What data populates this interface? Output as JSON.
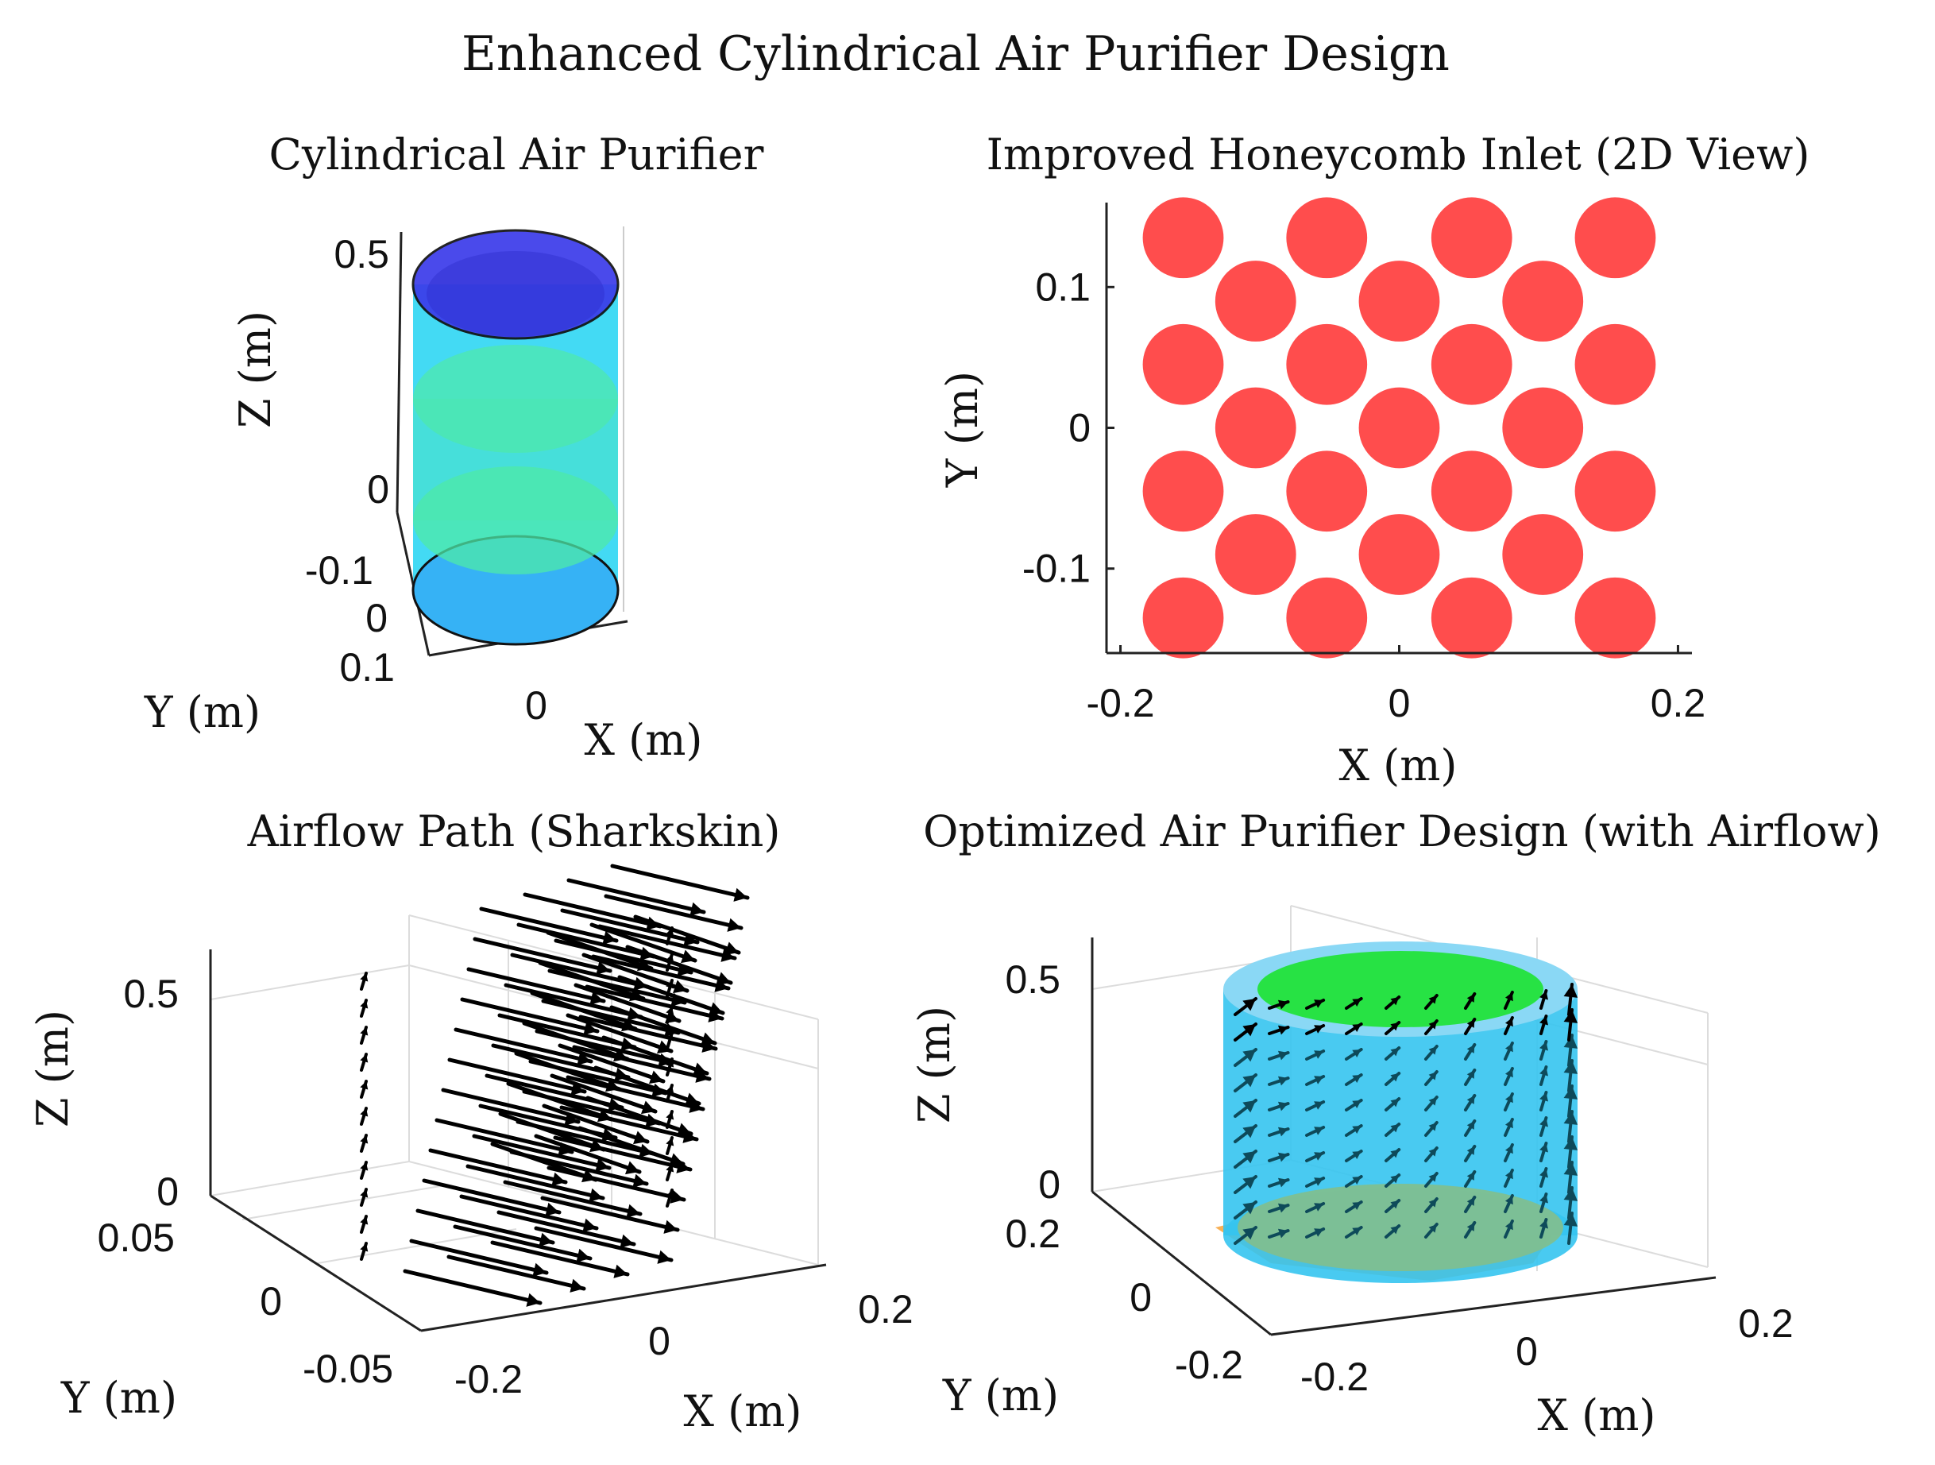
{
  "figure_title": "Enhanced Cylindrical Air Purifier Design",
  "chart_data": [
    {
      "id": "cylinder",
      "type": "3d-surface",
      "title": "Cylindrical Air Purifier",
      "xlabel": "X (m)",
      "ylabel": "Y (m)",
      "zlabel": "Z (m)",
      "x_ticks": [
        "0"
      ],
      "y_ticks": [
        "-0.1",
        "0",
        "0.1"
      ],
      "z_ticks": [
        "0",
        "0.5"
      ],
      "zlim": [
        -0.1,
        0.55
      ],
      "radius": 0.1,
      "height": 0.5,
      "layers": [
        {
          "name": "blue filter layer",
          "color": "#3b3bea"
        },
        {
          "name": "green filter layer",
          "color": "#4ee9a8"
        },
        {
          "name": "cyan shell",
          "color": "#22d4f2"
        },
        {
          "name": "light blue base",
          "color": "#36b2f5"
        }
      ]
    },
    {
      "id": "honeycomb",
      "type": "scatter",
      "title": "Improved Honeycomb Inlet (2D View)",
      "xlabel": "X (m)",
      "ylabel": "Y (m)",
      "x_ticks": [
        "-0.2",
        "0",
        "0.2"
      ],
      "y_ticks": [
        "-0.1",
        "0",
        "0.1"
      ],
      "xlim": [
        -0.21,
        0.21
      ],
      "ylim": [
        -0.16,
        0.16
      ],
      "circle_radius": 0.029,
      "color": "#ff4d4d",
      "rows": [
        {
          "y": 0.135,
          "x": [
            -0.155,
            -0.052,
            0.052,
            0.155
          ]
        },
        {
          "y": 0.09,
          "x": [
            -0.103,
            0.0,
            0.103
          ]
        },
        {
          "y": 0.045,
          "x": [
            -0.155,
            -0.052,
            0.052,
            0.155
          ]
        },
        {
          "y": 0.0,
          "x": [
            -0.103,
            0.0,
            0.103
          ]
        },
        {
          "y": -0.045,
          "x": [
            -0.155,
            -0.052,
            0.052,
            0.155
          ]
        },
        {
          "y": -0.09,
          "x": [
            -0.103,
            0.0,
            0.103
          ]
        },
        {
          "y": -0.135,
          "x": [
            -0.155,
            -0.052,
            0.052,
            0.155
          ]
        }
      ]
    },
    {
      "id": "airflow",
      "type": "quiver3d",
      "title": "Airflow Path (Sharkskin)",
      "xlabel": "X (m)",
      "ylabel": "Y (m)",
      "zlabel": "Z (m)",
      "x_ticks": [
        "-0.2",
        "0",
        "0.2"
      ],
      "y_ticks": [
        "-0.05",
        "0",
        "0.05"
      ],
      "z_ticks": [
        "0",
        "0.5"
      ],
      "color": "#000000"
    },
    {
      "id": "optimized",
      "type": "quiver3d+surface",
      "title": "Optimized Air Purifier Design (with Airflow)",
      "xlabel": "X (m)",
      "ylabel": "Y (m)",
      "zlabel": "Z (m)",
      "x_ticks": [
        "-0.2",
        "0",
        "0.2"
      ],
      "y_ticks": [
        "-0.2",
        "0",
        "0.2"
      ],
      "z_ticks": [
        "0",
        "0.5"
      ],
      "shell_color": "#35c4f0",
      "top_color": "#22e33a",
      "base_color": "#7fbf90",
      "arrow_color": "#0e4a5a"
    }
  ]
}
